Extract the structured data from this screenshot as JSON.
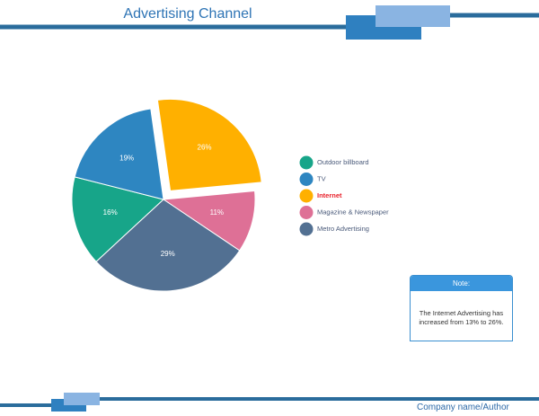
{
  "chart_data": {
    "type": "pie",
    "title": "Advertising Channel",
    "categories": [
      "Outdoor billboard",
      "TV",
      "Internet",
      "Magazine & Newspaper",
      "Metro Advertising"
    ],
    "values": [
      16,
      19,
      26,
      11,
      29
    ],
    "value_labels": [
      "16%",
      "19%",
      "26%",
      "11%",
      "29%"
    ],
    "colors": [
      "#17a589",
      "#2e86c1",
      "#ffb000",
      "#de7096",
      "#527092"
    ],
    "explode": [
      0,
      0,
      0.12,
      0,
      0
    ],
    "legend": "right"
  },
  "note": {
    "title": "Note:",
    "text": "The Internet Advertising has increased from 13% to 26%."
  },
  "footer": "Company name/Author"
}
